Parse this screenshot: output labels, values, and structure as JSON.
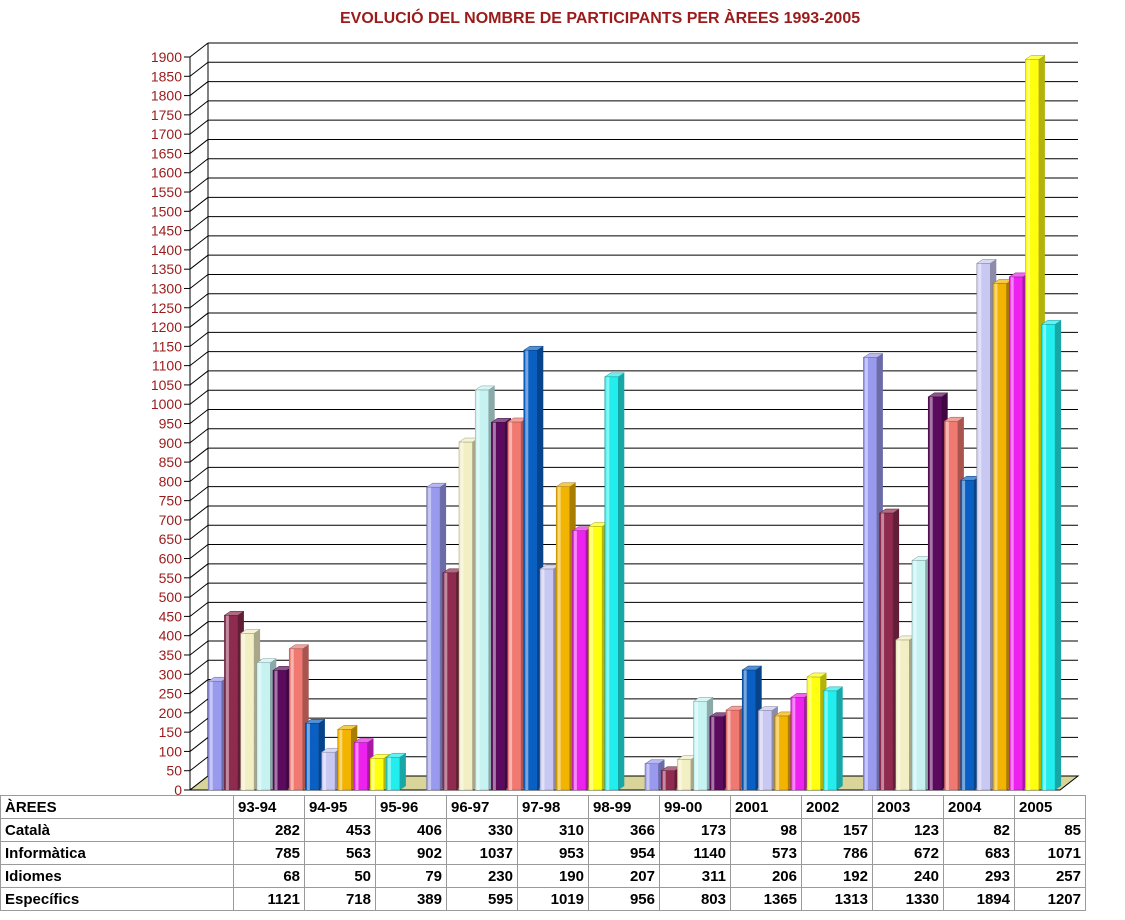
{
  "chart_data": {
    "type": "bar",
    "title": "EVOLUCIÓ DEL NOMBRE DE PARTICIPANTS PER ÀREES 1993-2005",
    "categories": [
      "Català",
      "Informàtica",
      "Idiomes",
      "Específics"
    ],
    "ylim": [
      0,
      1900
    ],
    "y_ticks": [
      0,
      50,
      100,
      150,
      200,
      250,
      300,
      350,
      400,
      450,
      500,
      550,
      600,
      650,
      700,
      750,
      800,
      850,
      900,
      950,
      1000,
      1050,
      1100,
      1150,
      1200,
      1250,
      1300,
      1350,
      1400,
      1450,
      1500,
      1550,
      1600,
      1650,
      1700,
      1750,
      1800,
      1850,
      1900
    ],
    "grid": true,
    "series": [
      {
        "name": "93-94",
        "color": "#9999ee",
        "values": [
          282,
          785,
          68,
          1121
        ]
      },
      {
        "name": "94-95",
        "color": "#8e2b4e",
        "values": [
          453,
          563,
          50,
          718
        ]
      },
      {
        "name": "95-96",
        "color": "#f2efc4",
        "values": [
          406,
          902,
          79,
          389
        ]
      },
      {
        "name": "96-97",
        "color": "#c7f2f2",
        "values": [
          330,
          1037,
          230,
          595
        ]
      },
      {
        "name": "97-98",
        "color": "#5c0a5e",
        "values": [
          310,
          953,
          190,
          1019
        ]
      },
      {
        "name": "98-99",
        "color": "#f07a72",
        "values": [
          366,
          954,
          207,
          956
        ]
      },
      {
        "name": "99-00",
        "color": "#0a5fc2",
        "values": [
          173,
          1140,
          311,
          803
        ]
      },
      {
        "name": "2001",
        "color": "#c8c8f2",
        "values": [
          98,
          573,
          206,
          1365
        ]
      },
      {
        "name": "2002",
        "color": "#f2b400",
        "values": [
          157,
          786,
          192,
          1313
        ]
      },
      {
        "name": "2003",
        "color": "#ee22ee",
        "values": [
          123,
          672,
          240,
          1330
        ]
      },
      {
        "name": "2004",
        "color": "#ffff10",
        "values": [
          82,
          683,
          293,
          1894
        ]
      },
      {
        "name": "2005",
        "color": "#22eeee",
        "values": [
          85,
          1071,
          257,
          1207
        ]
      }
    ]
  },
  "table": {
    "corner_label": "ÀREES"
  }
}
